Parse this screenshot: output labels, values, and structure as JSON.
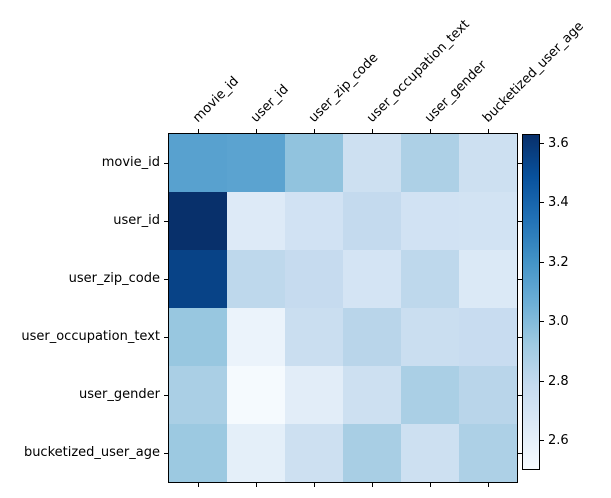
{
  "chart_data": {
    "type": "heatmap",
    "features": [
      "movie_id",
      "user_id",
      "user_zip_code",
      "user_occupation_text",
      "user_gender",
      "bucketized_user_age"
    ],
    "matrix": [
      [
        3.13,
        3.12,
        2.96,
        2.74,
        2.87,
        2.74
      ],
      [
        3.63,
        2.65,
        2.72,
        2.79,
        2.72,
        2.71
      ],
      [
        3.55,
        2.81,
        2.78,
        2.7,
        2.81,
        2.66
      ],
      [
        2.94,
        2.57,
        2.76,
        2.83,
        2.76,
        2.77
      ],
      [
        2.88,
        2.51,
        2.62,
        2.74,
        2.88,
        2.83
      ],
      [
        2.93,
        2.61,
        2.74,
        2.89,
        2.74,
        2.87
      ]
    ],
    "vmin": 2.5,
    "vmax": 3.63,
    "colormap": "Blues",
    "grid": false,
    "legend_position": "none",
    "colorbar": {
      "tick_values": [
        3.6,
        3.4,
        3.2,
        3.0,
        2.8,
        2.6
      ],
      "tick_labels": [
        "3.6",
        "3.4",
        "3.2",
        "3.0",
        "2.8",
        "2.6"
      ]
    },
    "colors": {
      "background": "#ffffff",
      "text": "#000000",
      "spine": "#000000",
      "cmap_low": "#f7fbff",
      "cmap_high": "#08306b"
    }
  }
}
